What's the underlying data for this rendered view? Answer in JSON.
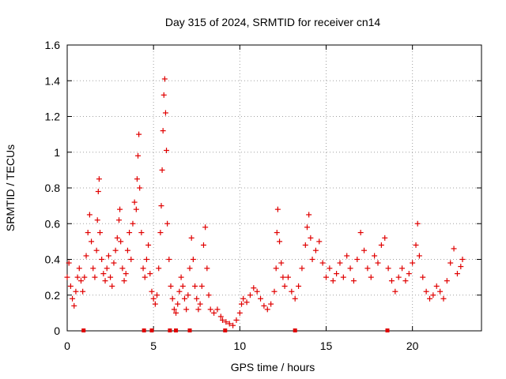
{
  "chart_data": {
    "type": "scatter",
    "title": "Day 315 of 2024, SRMTID for receiver cn14",
    "xlabel": "GPS time / hours",
    "ylabel": "SRMTID / TECUs",
    "xlim": [
      0,
      24
    ],
    "ylim": [
      0,
      1.6
    ],
    "xticks": [
      0,
      5,
      10,
      15,
      20
    ],
    "xtick_labels": [
      "0",
      "5",
      "10",
      "15",
      "20"
    ],
    "yticks": [
      0,
      0.2,
      0.4,
      0.6,
      0.8,
      1.0,
      1.2,
      1.4,
      1.6
    ],
    "ytick_labels": [
      "0",
      "0.2",
      "0.4",
      "0.6",
      "0.8",
      "1",
      "1.2",
      "1.4",
      "1.6"
    ],
    "grid": true,
    "marker": "+",
    "color": "#e00000",
    "series": [
      {
        "name": "SRMTID",
        "points": [
          [
            0.0,
            0.3
          ],
          [
            0.1,
            0.38
          ],
          [
            0.2,
            0.25
          ],
          [
            0.3,
            0.18
          ],
          [
            0.4,
            0.14
          ],
          [
            0.5,
            0.22
          ],
          [
            0.6,
            0.3
          ],
          [
            0.7,
            0.35
          ],
          [
            0.8,
            0.28
          ],
          [
            0.9,
            0.22
          ],
          [
            1.0,
            0.3
          ],
          [
            1.1,
            0.42
          ],
          [
            1.2,
            0.55
          ],
          [
            1.3,
            0.65
          ],
          [
            1.4,
            0.5
          ],
          [
            1.5,
            0.35
          ],
          [
            1.6,
            0.3
          ],
          [
            1.7,
            0.45
          ],
          [
            1.75,
            0.62
          ],
          [
            1.8,
            0.78
          ],
          [
            1.85,
            0.85
          ],
          [
            1.9,
            0.55
          ],
          [
            2.0,
            0.4
          ],
          [
            2.1,
            0.32
          ],
          [
            2.2,
            0.28
          ],
          [
            2.3,
            0.35
          ],
          [
            2.4,
            0.42
          ],
          [
            2.5,
            0.3
          ],
          [
            2.6,
            0.25
          ],
          [
            2.7,
            0.38
          ],
          [
            2.8,
            0.45
          ],
          [
            2.9,
            0.52
          ],
          [
            3.0,
            0.62
          ],
          [
            3.05,
            0.68
          ],
          [
            3.1,
            0.5
          ],
          [
            3.2,
            0.35
          ],
          [
            3.3,
            0.28
          ],
          [
            3.4,
            0.32
          ],
          [
            3.5,
            0.45
          ],
          [
            3.6,
            0.55
          ],
          [
            3.7,
            0.4
          ],
          [
            3.8,
            0.6
          ],
          [
            3.9,
            0.72
          ],
          [
            4.0,
            0.68
          ],
          [
            4.05,
            0.85
          ],
          [
            4.1,
            0.98
          ],
          [
            4.15,
            1.1
          ],
          [
            4.2,
            0.8
          ],
          [
            4.3,
            0.55
          ],
          [
            4.4,
            0.35
          ],
          [
            4.5,
            0.3
          ],
          [
            4.6,
            0.4
          ],
          [
            4.7,
            0.48
          ],
          [
            4.8,
            0.32
          ],
          [
            4.9,
            0.22
          ],
          [
            5.0,
            0.18
          ],
          [
            5.1,
            0.15
          ],
          [
            5.2,
            0.2
          ],
          [
            5.3,
            0.35
          ],
          [
            5.4,
            0.55
          ],
          [
            5.45,
            0.7
          ],
          [
            5.5,
            0.9
          ],
          [
            5.55,
            1.12
          ],
          [
            5.6,
            1.32
          ],
          [
            5.65,
            1.41
          ],
          [
            5.7,
            1.22
          ],
          [
            5.75,
            1.01
          ],
          [
            5.8,
            0.6
          ],
          [
            5.9,
            0.4
          ],
          [
            6.0,
            0.25
          ],
          [
            6.1,
            0.18
          ],
          [
            6.2,
            0.12
          ],
          [
            6.3,
            0.1
          ],
          [
            6.4,
            0.15
          ],
          [
            6.5,
            0.22
          ],
          [
            6.6,
            0.3
          ],
          [
            6.7,
            0.25
          ],
          [
            6.8,
            0.18
          ],
          [
            6.9,
            0.12
          ],
          [
            7.0,
            0.2
          ],
          [
            7.1,
            0.35
          ],
          [
            7.2,
            0.52
          ],
          [
            7.3,
            0.4
          ],
          [
            7.4,
            0.25
          ],
          [
            7.5,
            0.18
          ],
          [
            7.6,
            0.12
          ],
          [
            7.7,
            0.15
          ],
          [
            7.8,
            0.25
          ],
          [
            7.9,
            0.48
          ],
          [
            8.0,
            0.58
          ],
          [
            8.1,
            0.35
          ],
          [
            8.2,
            0.2
          ],
          [
            8.3,
            0.12
          ],
          [
            8.5,
            0.1
          ],
          [
            8.7,
            0.12
          ],
          [
            8.9,
            0.08
          ],
          [
            9.0,
            0.06
          ],
          [
            9.2,
            0.05
          ],
          [
            9.4,
            0.04
          ],
          [
            9.6,
            0.03
          ],
          [
            9.8,
            0.06
          ],
          [
            10.0,
            0.1
          ],
          [
            10.1,
            0.15
          ],
          [
            10.2,
            0.18
          ],
          [
            10.4,
            0.16
          ],
          [
            10.6,
            0.2
          ],
          [
            10.8,
            0.24
          ],
          [
            11.0,
            0.22
          ],
          [
            11.2,
            0.18
          ],
          [
            11.4,
            0.14
          ],
          [
            11.6,
            0.12
          ],
          [
            11.8,
            0.15
          ],
          [
            12.0,
            0.22
          ],
          [
            12.1,
            0.35
          ],
          [
            12.15,
            0.55
          ],
          [
            12.2,
            0.68
          ],
          [
            12.3,
            0.5
          ],
          [
            12.4,
            0.38
          ],
          [
            12.5,
            0.3
          ],
          [
            12.6,
            0.25
          ],
          [
            12.8,
            0.3
          ],
          [
            13.0,
            0.22
          ],
          [
            13.2,
            0.18
          ],
          [
            13.4,
            0.25
          ],
          [
            13.6,
            0.35
          ],
          [
            13.8,
            0.48
          ],
          [
            13.9,
            0.58
          ],
          [
            14.0,
            0.65
          ],
          [
            14.1,
            0.52
          ],
          [
            14.2,
            0.4
          ],
          [
            14.4,
            0.45
          ],
          [
            14.6,
            0.5
          ],
          [
            14.8,
            0.38
          ],
          [
            15.0,
            0.3
          ],
          [
            15.2,
            0.35
          ],
          [
            15.4,
            0.28
          ],
          [
            15.6,
            0.32
          ],
          [
            15.8,
            0.38
          ],
          [
            16.0,
            0.3
          ],
          [
            16.2,
            0.42
          ],
          [
            16.4,
            0.35
          ],
          [
            16.6,
            0.28
          ],
          [
            16.8,
            0.4
          ],
          [
            17.0,
            0.55
          ],
          [
            17.2,
            0.45
          ],
          [
            17.4,
            0.35
          ],
          [
            17.6,
            0.3
          ],
          [
            17.8,
            0.42
          ],
          [
            18.0,
            0.38
          ],
          [
            18.2,
            0.48
          ],
          [
            18.4,
            0.52
          ],
          [
            18.6,
            0.35
          ],
          [
            18.8,
            0.28
          ],
          [
            19.0,
            0.22
          ],
          [
            19.2,
            0.3
          ],
          [
            19.4,
            0.35
          ],
          [
            19.6,
            0.28
          ],
          [
            19.8,
            0.32
          ],
          [
            20.0,
            0.38
          ],
          [
            20.2,
            0.48
          ],
          [
            20.3,
            0.6
          ],
          [
            20.4,
            0.42
          ],
          [
            20.6,
            0.3
          ],
          [
            20.8,
            0.22
          ],
          [
            21.0,
            0.18
          ],
          [
            21.2,
            0.2
          ],
          [
            21.4,
            0.25
          ],
          [
            21.6,
            0.22
          ],
          [
            21.8,
            0.18
          ],
          [
            22.0,
            0.28
          ],
          [
            22.2,
            0.38
          ],
          [
            22.4,
            0.46
          ],
          [
            22.6,
            0.32
          ],
          [
            22.8,
            0.36
          ],
          [
            22.9,
            0.4
          ]
        ]
      }
    ],
    "bottom_markers": [
      0.95,
      4.45,
      4.9,
      5.95,
      6.3,
      7.1,
      9.15,
      13.2,
      18.55
    ]
  }
}
